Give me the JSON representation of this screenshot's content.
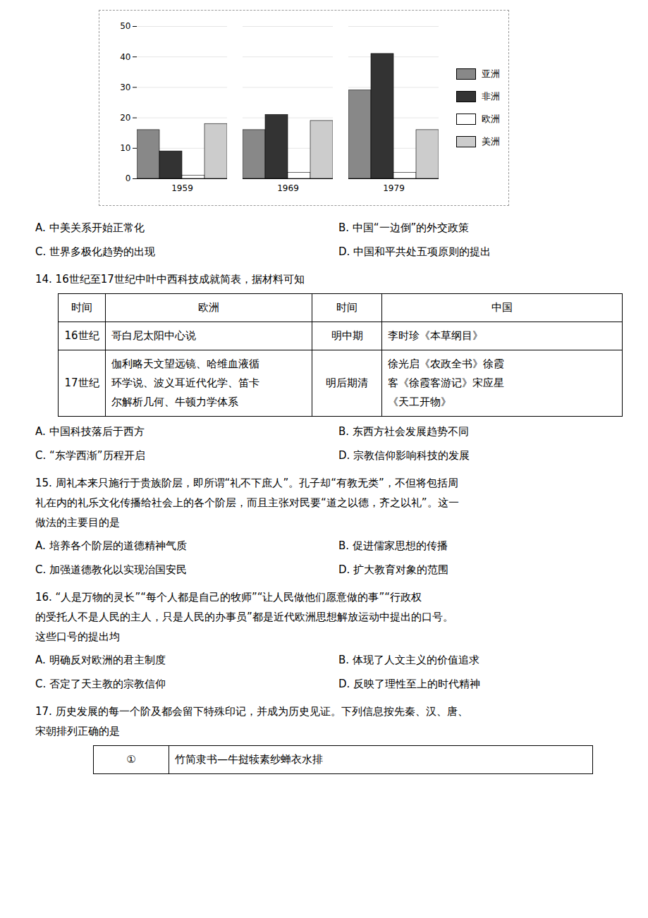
{
  "chart_data": {
    "type": "bar",
    "categories": [
      "1959",
      "1969",
      "1979"
    ],
    "series": [
      {
        "name": "亚洲",
        "color": "#888888",
        "values": [
          16,
          16,
          29
        ]
      },
      {
        "name": "非洲",
        "color": "#333333",
        "values": [
          9,
          21,
          41
        ]
      },
      {
        "name": "欧洲",
        "color": "#ffffff",
        "values": [
          1,
          2,
          2
        ]
      },
      {
        "name": "美洲",
        "color": "#cccccc",
        "values": [
          18,
          19,
          16
        ]
      }
    ],
    "ylim": [
      0,
      50
    ],
    "yticks": [
      0,
      10,
      20,
      30,
      40,
      50
    ],
    "grid": true,
    "legend": "right",
    "annotations": [
      "A. 中美关系开始正常化",
      "B. 中国“一边倒”的外交政策",
      "C. 世界多极化趋势的出现",
      "D. 中国和平共处五项原则的提出",
      "14. 16世纪至17世纪中叶中西科技成就简表，据材料可知",
      "时间",
      "欧洲",
      "时间",
      "中国",
      "16世纪",
      "哥白尼太阳中心说",
      "明中期",
      "李时珍《本草纲目》",
      "17世纪",
      "伽利略天文望远镜、哈维血液循",
      "环学说、波义耳近代化学、笛卡",
      "尔解析几何、牛顿力学体系",
      "明后期清",
      "徐光启《农政全书》徐霞",
      "客《徐霞客游记》宋应星",
      "《天工开物》",
      "A. 中国科技落后于西方",
      "B. 东西方社会发展趋势不同",
      "C. “东学西渐”历程开启",
      "D. 宗教信仰影响科技的发展",
      "15. 周礼本来只施行于贵族阶层，即所谓“礼不下庶人”。孔子却“有教无类”，不但将包括周",
      "礼在内的礼乐文化传播给社会上的各个阶层，而且主张对民要“道之以德，齐之以礼”。这一",
      "做法的主要目的是",
      "A. 培养各个阶层的道德精神气质",
      "B. 促进儒家思想的传播",
      "C. 加强道德教化以实现治国安民",
      "D. 扩大教育对象的范围",
      "16. “人是万物的灵长”“每个人都是自己的牧师”“让人民做他们愿意做的事”“行政权",
      "的受托人不是人民的主人，只是人民的办事员”都是近代欧洲思想解放运动中提出的口号。",
      "这些口号的提出均",
      "A. 明确反对欧洲的君主制度",
      "B. 体现了人文主义的价值追求",
      "C. 否定了天主教的宗教信仰",
      "D. 反映了理性至上的时代精神",
      "17. 历史发展的每一个阶及都会留下特殊印记，并成为历史见证。下列信息按先秦、汉、唐、",
      "宋朝排列正确的是",
      "①",
      "竹简隶书—牛挝犊素纱蝉衣水排"
    ]
  }
}
